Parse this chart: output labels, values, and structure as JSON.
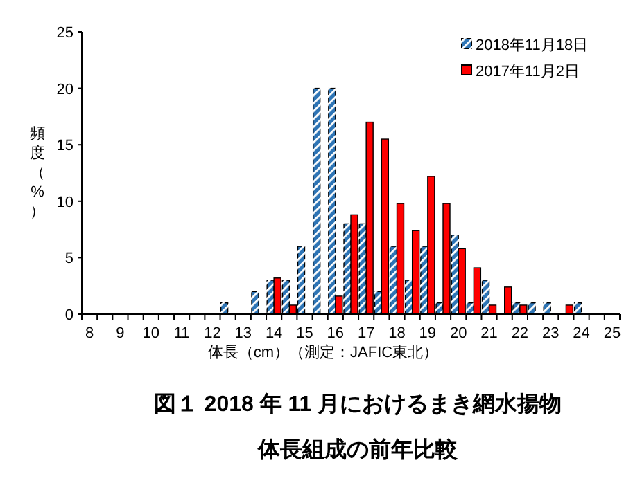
{
  "chart_data": {
    "type": "bar",
    "title": "図１ 2018 年 11 月におけるまき網水揚物",
    "subtitle": "体長組成の前年比較",
    "xlabel": "体長（cm）（測定：JAFIC東北）",
    "ylabel": "頻度（%）",
    "categories": [
      "8",
      null,
      "9",
      null,
      "10",
      null,
      "11",
      null,
      "12",
      null,
      "13",
      null,
      "14",
      null,
      "15",
      null,
      "16",
      null,
      "17",
      null,
      "18",
      null,
      "19",
      null,
      "20",
      null,
      "21",
      null,
      "22",
      null,
      "23",
      null,
      "24",
      null,
      "25"
    ],
    "series": [
      {
        "name": "2018年11月18日",
        "color": "#2e75b6",
        "values": [
          0,
          0,
          0,
          0,
          0,
          0,
          0,
          0,
          0,
          1,
          0,
          2,
          3,
          3,
          6,
          20,
          20,
          8,
          8,
          2,
          6,
          3,
          6,
          1,
          7,
          1,
          3,
          0,
          1,
          1,
          1,
          0,
          1,
          0,
          0
        ]
      },
      {
        "name": "2017年11月2日",
        "color": "#ff0000",
        "values": [
          0,
          0,
          0,
          0,
          0,
          0,
          0,
          0,
          0,
          0,
          0,
          0,
          3.2,
          0.8,
          0,
          0,
          1.6,
          8.8,
          17,
          15.5,
          9.8,
          7.4,
          12.2,
          9.8,
          5.8,
          4.1,
          0.8,
          2.4,
          0.8,
          0,
          0,
          0.8,
          0,
          0,
          0
        ]
      }
    ],
    "ylim": [
      0,
      25
    ],
    "yticks": [
      0,
      5,
      10,
      15,
      20,
      25
    ],
    "legend": "top right",
    "grid": false
  }
}
